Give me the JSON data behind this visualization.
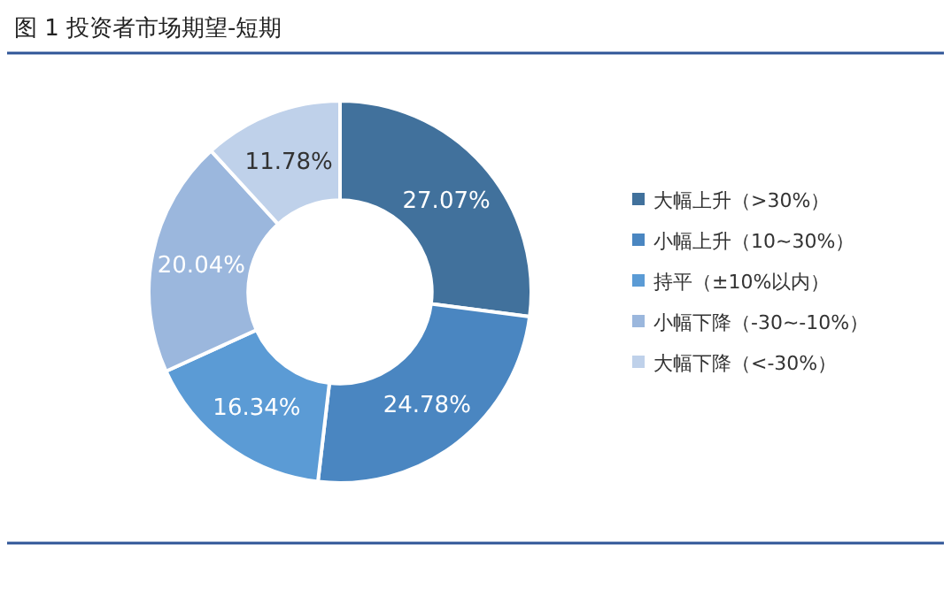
{
  "chart_data": {
    "type": "donut",
    "title": "图 1 投资者市场期望-短期",
    "categories": [
      "大幅上升（>30%）",
      "小幅上升（10~30%）",
      "持平（±10%以内）",
      "小幅下降（-30~-10%）",
      "大幅下降（<-30%）"
    ],
    "values": [
      27.07,
      24.78,
      16.34,
      20.04,
      11.78
    ],
    "colors": [
      "#41719c",
      "#4a86c1",
      "#5b9bd5",
      "#9bb7dd",
      "#bfd1ea"
    ],
    "value_labels": [
      "27.07%",
      "24.78%",
      "16.34%",
      "20.04%",
      "11.78%"
    ],
    "legend": "right"
  }
}
